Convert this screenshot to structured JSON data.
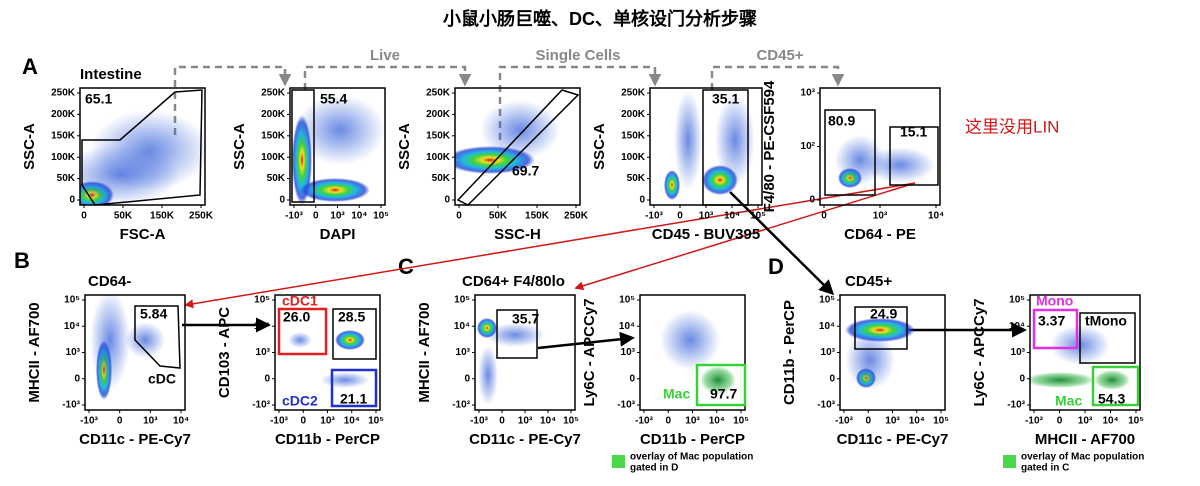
{
  "title": "小鼠小肠巨噬、DC、单核设门分析步骤",
  "annotation": "这里没用LIN",
  "panel_letters": [
    "A",
    "B",
    "C",
    "D"
  ],
  "gate_steps": [
    "Live",
    "Single Cells",
    "CD45+"
  ],
  "plots": [
    {
      "header": "Intestine",
      "xlabel": "FSC-A",
      "ylabel": "SSC-A",
      "xticks": [
        "0",
        "50K",
        "150K",
        "250K"
      ],
      "yticks": [
        "250K",
        "200K",
        "150K",
        "100K",
        "50K",
        "0"
      ],
      "labels": [
        "65.1"
      ]
    },
    {
      "xlabel": "DAPI",
      "ylabel": "SSC-A",
      "xticks": [
        "-10³",
        "0",
        "10³",
        "10⁴",
        "10⁵"
      ],
      "yticks": [
        "250K",
        "200K",
        "150K",
        "100K",
        "50K",
        "0"
      ],
      "labels": [
        "55.4"
      ]
    },
    {
      "xlabel": "SSC-H",
      "ylabel": "SSC-A",
      "xticks": [
        "0",
        "50K",
        "150K",
        "250K"
      ],
      "yticks": [
        "250K",
        "200K",
        "150K",
        "100K",
        "50K",
        "0"
      ],
      "labels": [
        "69.7"
      ]
    },
    {
      "xlabel": "CD45 - BUV395",
      "ylabel": "SSC-A",
      "xticks": [
        "-10³",
        "0",
        "10³",
        "10⁴",
        "10⁵"
      ],
      "yticks": [
        "250K",
        "200K",
        "150K",
        "100K",
        "50K",
        "0"
      ],
      "labels": [
        "35.1"
      ]
    },
    {
      "xlabel": "CD64 - PE",
      "ylabel": "F4/80 - PE-CSF594",
      "xticks": [
        "0",
        "10³",
        "10⁴"
      ],
      "yticks": [
        "10³",
        "10²",
        "0"
      ],
      "labels": [
        "80.9",
        "15.1"
      ]
    },
    {
      "header": "CD64-",
      "xlabel": "CD11c - PE-Cy7",
      "ylabel": "MHCII - AF700",
      "xticks": [
        "-10³",
        "0",
        "10³",
        "10⁴"
      ],
      "yticks": [
        "10⁵",
        "10⁴",
        "10³",
        "0",
        "-10³"
      ],
      "labels": [
        "5.84",
        "cDC"
      ]
    },
    {
      "xlabel": "CD11b - PerCP",
      "ylabel": "CD103 - APC",
      "xticks": [
        "-10³",
        "0",
        "10³",
        "10⁴",
        "10⁵"
      ],
      "yticks": [
        "10⁵",
        "10⁴",
        "10³",
        "0",
        "-10³"
      ],
      "labels": [
        "cDC1",
        "26.0",
        "28.5",
        "cDC2",
        "21.1"
      ]
    },
    {
      "header": "CD64+ F4/80lo",
      "xlabel": "CD11c - PE-Cy7",
      "ylabel": "MHCII - AF700",
      "xticks": [
        "-10³",
        "0",
        "10³",
        "10⁴",
        "10⁵"
      ],
      "yticks": [
        "10⁵",
        "10⁴",
        "10³",
        "0",
        "-10³"
      ],
      "labels": [
        "35.7"
      ]
    },
    {
      "xlabel": "CD11b - PerCP",
      "ylabel": "Ly6C - APCCy7",
      "xticks": [
        "-10³",
        "0",
        "10³",
        "10⁴",
        "10⁵"
      ],
      "yticks": [
        "10⁵",
        "10⁴",
        "10³",
        "0",
        "-10³"
      ],
      "labels": [
        "Mac",
        "97.7"
      ]
    },
    {
      "header": "CD45+",
      "xlabel": "CD11c - PE-Cy7",
      "ylabel": "CD11b - PerCP",
      "xticks": [
        "-10³",
        "0",
        "10³",
        "10⁴",
        "10⁵"
      ],
      "yticks": [
        "10⁵",
        "10⁴",
        "10³",
        "0",
        "-10³"
      ],
      "labels": [
        "24.9"
      ]
    },
    {
      "xlabel": "MHCII - AF700",
      "ylabel": "Ly6C - APCCy7",
      "xticks": [
        "-10³",
        "0",
        "10³",
        "10⁴",
        "10⁵"
      ],
      "yticks": [
        "10⁵",
        "10⁴",
        "10³",
        "0",
        "-10³"
      ],
      "labels": [
        "Mono",
        "3.37",
        "tMono",
        "Mac",
        "54.3"
      ]
    }
  ],
  "legends": [
    {
      "lines": [
        "overlay of Mac population",
        "gated in D"
      ]
    },
    {
      "lines": [
        "overlay of Mac population",
        "gated in C"
      ]
    }
  ]
}
